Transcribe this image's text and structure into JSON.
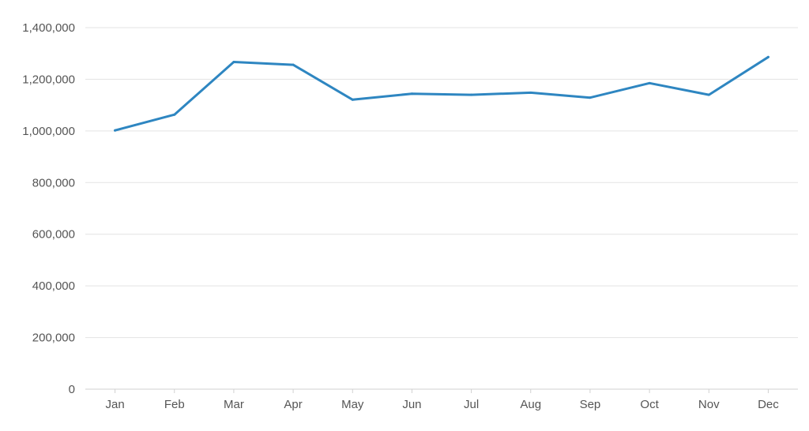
{
  "chart_data": {
    "type": "line",
    "title": "",
    "xlabel": "",
    "ylabel": "",
    "categories": [
      "Jan",
      "Feb",
      "Mar",
      "Apr",
      "May",
      "Jun",
      "Jul",
      "Aug",
      "Sep",
      "Oct",
      "Nov",
      "Dec"
    ],
    "y_ticks": [
      0,
      200000,
      400000,
      600000,
      800000,
      1000000,
      1200000,
      1400000
    ],
    "y_tick_labels": [
      "0",
      "200,000",
      "400,000",
      "600,000",
      "800,000",
      "1,000,000",
      "1,200,000",
      "1,400,000"
    ],
    "ylim": [
      0,
      1400000
    ],
    "grid": true,
    "legend": "none",
    "series": [
      {
        "color": "#2e86c1",
        "values": [
          1002000,
          1063000,
          1267000,
          1256000,
          1121000,
          1144000,
          1140000,
          1148000,
          1129000,
          1185000,
          1140000,
          1286000
        ]
      }
    ]
  }
}
